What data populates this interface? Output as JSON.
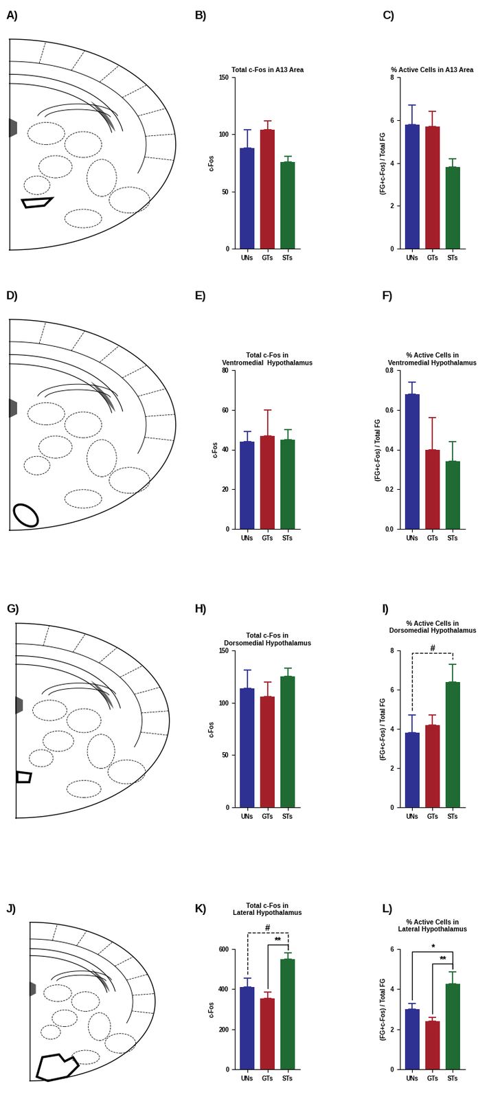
{
  "chart_data": [
    {
      "panel": "B)",
      "type": "bar",
      "title": "Total c-Fos in A13 Area",
      "y_label": "c-Fos",
      "categories": [
        "UNs",
        "GTs",
        "STs"
      ],
      "values": [
        88,
        104,
        76
      ],
      "errors": [
        16,
        8,
        5
      ],
      "colors": [
        "#2e3192",
        "#a3202a",
        "#1f6b33"
      ],
      "ylim": [
        0,
        150
      ],
      "yticks": [
        0,
        50,
        100,
        150
      ]
    },
    {
      "panel": "C)",
      "type": "bar",
      "title": "% Active Cells in A13 Area",
      "y_label": "(FG+c-Fos) / Total FG",
      "categories": [
        "UNs",
        "GTs",
        "STs"
      ],
      "values": [
        5.8,
        5.7,
        3.8
      ],
      "errors": [
        0.9,
        0.7,
        0.4
      ],
      "colors": [
        "#2e3192",
        "#a3202a",
        "#1f6b33"
      ],
      "ylim": [
        0,
        8
      ],
      "yticks": [
        0,
        2,
        4,
        6,
        8
      ]
    },
    {
      "panel": "E)",
      "type": "bar",
      "title": "Total c-Fos in\nVentromedial  Hypothalamus",
      "y_label": "c-Fos",
      "categories": [
        "UNs",
        "GTs",
        "STs"
      ],
      "values": [
        44,
        47,
        45
      ],
      "errors": [
        5,
        13,
        5
      ],
      "colors": [
        "#2e3192",
        "#a3202a",
        "#1f6b33"
      ],
      "ylim": [
        0,
        80
      ],
      "yticks": [
        0,
        20,
        40,
        60,
        80
      ]
    },
    {
      "panel": "F)",
      "type": "bar",
      "title": "% Active Cells in\nVentromedial Hypothalamus",
      "y_label": "(FG+c-Fos) / Total FG",
      "categories": [
        "UNs",
        "GTs",
        "STs"
      ],
      "values": [
        0.68,
        0.4,
        0.34
      ],
      "errors": [
        0.06,
        0.16,
        0.1
      ],
      "colors": [
        "#2e3192",
        "#a3202a",
        "#1f6b33"
      ],
      "ylim": [
        0,
        0.8
      ],
      "yticks": [
        {
          "value": 0,
          "label": "0.0"
        },
        0.2,
        0.4,
        0.6,
        0.8
      ]
    },
    {
      "panel": "H)",
      "type": "bar",
      "title": "Total c-Fos in\nDorsomedial Hypothalamus",
      "y_label": "c-Fos",
      "categories": [
        "UNs",
        "GTs",
        "STs"
      ],
      "values": [
        114,
        106,
        125
      ],
      "errors": [
        17,
        14,
        8
      ],
      "colors": [
        "#2e3192",
        "#a3202a",
        "#1f6b33"
      ],
      "ylim": [
        0,
        150
      ],
      "yticks": [
        0,
        50,
        100,
        150
      ]
    },
    {
      "panel": "I)",
      "type": "bar",
      "title": "% Active Cells in\nDorsomedial Hypothalamus",
      "y_label": "(FG+c-Fos) / Total FG",
      "categories": [
        "UNs",
        "GTs",
        "STs"
      ],
      "values": [
        3.8,
        4.2,
        6.4
      ],
      "errors": [
        0.9,
        0.5,
        0.9
      ],
      "colors": [
        "#2e3192",
        "#a3202a",
        "#1f6b33"
      ],
      "ylim": [
        0,
        8
      ],
      "yticks": [
        0,
        2,
        4,
        6,
        8
      ],
      "annotations": [
        {
          "text": "#",
          "from": "UNs",
          "to": "STs",
          "line_style": "dashed"
        }
      ]
    },
    {
      "panel": "K)",
      "type": "bar",
      "title": "Total c-Fos in\nLateral Hypothalamus",
      "y_label": "c-Fos",
      "categories": [
        "UNs",
        "GTs",
        "STs"
      ],
      "values": [
        410,
        355,
        548
      ],
      "errors": [
        45,
        30,
        32
      ],
      "colors": [
        "#2e3192",
        "#a3202a",
        "#1f6b33"
      ],
      "ylim": [
        0,
        600
      ],
      "yticks": [
        0,
        200,
        400,
        600
      ],
      "annotations": [
        {
          "text": "#",
          "from": "UNs",
          "to": "STs",
          "line_style": "dashed"
        },
        {
          "text": "**",
          "from": "GTs",
          "to": "STs",
          "line_style": "solid"
        }
      ]
    },
    {
      "panel": "L)",
      "type": "bar",
      "title": "% Active Cells in\nLateral Hypothalamus",
      "y_label": "(FG+c-Fos) / Total FG",
      "categories": [
        "UNs",
        "GTs",
        "STs"
      ],
      "values": [
        3.0,
        2.4,
        4.25
      ],
      "errors": [
        0.3,
        0.2,
        0.6
      ],
      "colors": [
        "#2e3192",
        "#a3202a",
        "#1f6b33"
      ],
      "ylim": [
        0,
        6
      ],
      "yticks": [
        0,
        2,
        4,
        6
      ],
      "annotations": [
        {
          "text": "*",
          "from": "UNs",
          "to": "STs",
          "line_style": "solid"
        },
        {
          "text": "**",
          "from": "GTs",
          "to": "STs",
          "line_style": "solid"
        }
      ]
    }
  ],
  "diagram_panels": [
    "A)",
    "D)",
    "G)",
    "J)"
  ]
}
